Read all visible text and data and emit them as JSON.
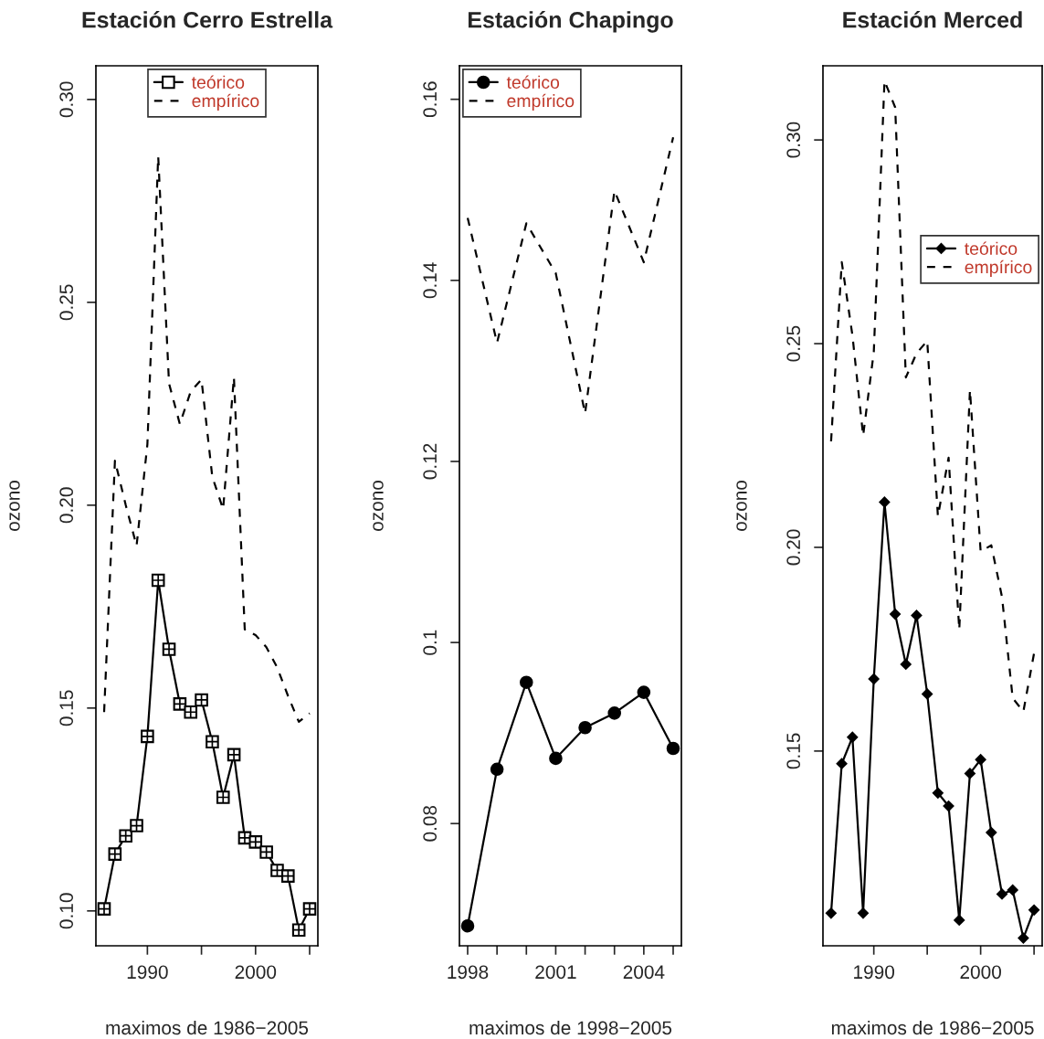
{
  "chart_data": [
    {
      "type": "line",
      "title": "Estación Cerro Estrella",
      "xlabel": "maximos de 1986−2005",
      "ylabel": "ozono",
      "legend": "top",
      "grid": false,
      "x": [
        1986,
        1987,
        1988,
        1989,
        1990,
        1991,
        1992,
        1993,
        1994,
        1995,
        1996,
        1997,
        1998,
        1999,
        2000,
        2001,
        2002,
        2003,
        2004,
        2005
      ],
      "xlim": [
        1985.24,
        2005.76
      ],
      "xticks": [
        1990,
        {
          "value": 1995,
          "label": null
        },
        2000,
        {
          "value": 2005,
          "label": null
        }
      ],
      "ylim": [
        0.0914,
        0.3083
      ],
      "yticks": [
        {
          "value": 0.1,
          "label": "0.10"
        },
        {
          "value": 0.15,
          "label": "0.15"
        },
        {
          "value": 0.2,
          "label": "0.20"
        },
        {
          "value": 0.25,
          "label": "0.25"
        },
        {
          "value": 0.3,
          "label": "0.30"
        }
      ],
      "series": [
        {
          "name": "teórico",
          "color": "#000000",
          "marker": "square",
          "line_style": "solid",
          "values": [
            0.1005,
            0.114,
            0.1185,
            0.121,
            0.143,
            0.1815,
            0.1645,
            0.151,
            0.149,
            0.152,
            0.1417,
            0.128,
            0.1385,
            0.118,
            0.117,
            0.1145,
            0.11,
            0.1086,
            0.0953,
            0.1005
          ]
        },
        {
          "name": "empírico",
          "color": "#000000",
          "marker": "none",
          "line_style": "dashed",
          "values": [
            0.149,
            0.211,
            0.2,
            0.19,
            0.215,
            0.286,
            0.23,
            0.22,
            0.228,
            0.231,
            0.207,
            0.199,
            0.2315,
            0.1694,
            0.168,
            0.165,
            0.16,
            0.153,
            0.1466,
            0.1487
          ]
        }
      ]
    },
    {
      "type": "line",
      "title": "Estación Chapingo",
      "xlabel": "maximos de 1998−2005",
      "ylabel": "ozono",
      "legend": "top left",
      "grid": false,
      "x": [
        1998,
        1999,
        2000,
        2001,
        2002,
        2003,
        2004,
        2005
      ],
      "xlim": [
        1997.72,
        2005.28
      ],
      "xticks": [
        1998,
        {
          "value": 1999,
          "label": null
        },
        {
          "value": 2000,
          "label": null
        },
        2001,
        {
          "value": 2002,
          "label": null
        },
        {
          "value": 2003,
          "label": null
        },
        2004,
        {
          "value": 2005,
          "label": null
        }
      ],
      "ylim": [
        0.0665,
        0.1637
      ],
      "yticks": [
        0.08,
        0.1,
        0.12,
        0.14,
        0.16
      ],
      "series": [
        {
          "name": "teórico",
          "color": "#000000",
          "marker": "circle",
          "line_style": "solid",
          "values": [
            0.0687,
            0.086,
            0.0956,
            0.0872,
            0.0906,
            0.0922,
            0.0945,
            0.0883
          ]
        },
        {
          "name": "empírico",
          "color": "#000000",
          "marker": "none",
          "line_style": "dashed",
          "values": [
            0.1469,
            0.1331,
            0.1463,
            0.1408,
            0.1253,
            0.1499,
            0.142,
            0.1558
          ]
        }
      ]
    },
    {
      "type": "line",
      "title": "Estación Merced",
      "xlabel": "maximos de 1986−2005",
      "ylabel": "ozono",
      "legend": "right",
      "grid": false,
      "x": [
        1986,
        1987,
        1988,
        1989,
        1990,
        1991,
        1992,
        1993,
        1994,
        1995,
        1996,
        1997,
        1998,
        1999,
        2000,
        2001,
        2002,
        2003,
        2004,
        2005
      ],
      "xlim": [
        1985.24,
        2005.76
      ],
      "xticks": [
        1990,
        {
          "value": 1995,
          "label": null
        },
        2000,
        {
          "value": 2005,
          "label": null
        }
      ],
      "ylim": [
        0.1022,
        0.3182
      ],
      "yticks": [
        {
          "value": 0.15,
          "label": "0.15"
        },
        {
          "value": 0.2,
          "label": "0.20"
        },
        {
          "value": 0.25,
          "label": "0.25"
        },
        {
          "value": 0.3,
          "label": "0.30"
        }
      ],
      "series": [
        {
          "name": "teórico",
          "color": "#000000",
          "marker": "diamond",
          "line_style": "solid",
          "values": [
            0.1102,
            0.1469,
            0.1534,
            0.1102,
            0.1677,
            0.2111,
            0.1836,
            0.1713,
            0.1833,
            0.164,
            0.1397,
            0.1365,
            0.1085,
            0.1445,
            0.1479,
            0.13,
            0.1149,
            0.1159,
            0.1041,
            0.111
          ]
        },
        {
          "name": "empírico",
          "color": "#000000",
          "marker": "none",
          "line_style": "dashed",
          "values": [
            0.226,
            0.27,
            0.252,
            0.2274,
            0.248,
            0.3145,
            0.308,
            0.2417,
            0.2476,
            0.2507,
            0.2076,
            0.222,
            0.1798,
            0.2386,
            0.199,
            0.2005,
            0.1878,
            0.163,
            0.1597,
            0.174
          ]
        }
      ]
    }
  ]
}
